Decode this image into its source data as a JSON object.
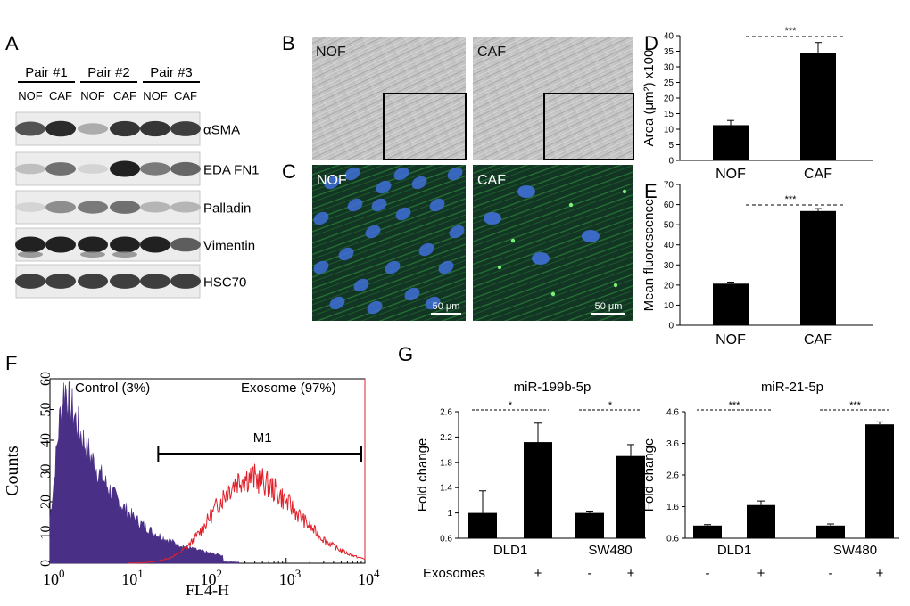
{
  "panels": {
    "A": {
      "letter": "A",
      "pairs": [
        "Pair #1",
        "Pair #2",
        "Pair #3"
      ],
      "lane_labels": [
        "NOF",
        "CAF",
        "NOF",
        "CAF",
        "NOF",
        "CAF"
      ],
      "blots": [
        {
          "label": "αSMA",
          "intensities": [
            0.75,
            0.95,
            0.3,
            0.9,
            0.9,
            0.85
          ]
        },
        {
          "label": "EDA FN1",
          "intensities": [
            0.2,
            0.6,
            0.1,
            1.0,
            0.55,
            0.65
          ]
        },
        {
          "label": "Palladin",
          "intensities": [
            0.1,
            0.45,
            0.55,
            0.6,
            0.25,
            0.25
          ]
        },
        {
          "label": "Vimentin",
          "intensities": [
            1.0,
            1.0,
            1.0,
            1.0,
            1.0,
            0.7
          ]
        },
        {
          "label": "HSC70",
          "intensities": [
            0.85,
            0.85,
            0.85,
            0.85,
            0.85,
            0.85
          ]
        }
      ]
    },
    "B": {
      "letter": "B",
      "left_label": "NOF",
      "right_label": "CAF"
    },
    "C": {
      "letter": "C",
      "left_label": "NOF",
      "right_label": "CAF",
      "scale_left": "50 μm",
      "scale_right": "50 μm"
    },
    "F": {
      "letter": "F"
    },
    "G": {
      "letter": "G",
      "exosomes_label": "Exosomes",
      "signs": [
        "-",
        "+",
        "-",
        "+"
      ]
    }
  },
  "chart_data": [
    {
      "id": "D",
      "type": "bar",
      "categories": [
        "NOF",
        "CAF"
      ],
      "values": [
        11.3,
        34.3
      ],
      "errors": [
        1.5,
        3.5
      ],
      "ylabel": "Area (μm²) x100",
      "ylim": [
        0,
        40
      ],
      "yticks": [
        "0",
        "5",
        "10",
        "15",
        "20",
        "25",
        "30",
        "35",
        "40"
      ],
      "significance": "***"
    },
    {
      "id": "E",
      "type": "bar",
      "categories": [
        "NOF",
        "CAF"
      ],
      "values": [
        20.7,
        56.8
      ],
      "errors": [
        0.8,
        1.2
      ],
      "ylabel": "Mean fluorescence",
      "ylim": [
        0,
        70
      ],
      "yticks": [
        "0",
        "10",
        "20",
        "30",
        "40",
        "50",
        "60",
        "70"
      ],
      "significance": "***"
    },
    {
      "id": "F",
      "type": "histogram",
      "ylabel": "Counts",
      "xlabel": "FL4-H",
      "xscale": "log",
      "xlim": [
        1,
        10000
      ],
      "ylim": [
        0,
        60
      ],
      "yticks": [
        "0",
        "10",
        "20",
        "30",
        "40",
        "50",
        "60"
      ],
      "xticks": [
        {
          "base": "10",
          "exp": "0"
        },
        {
          "base": "10",
          "exp": "1"
        },
        {
          "base": "10",
          "exp": "2"
        },
        {
          "base": "10",
          "exp": "3"
        },
        {
          "base": "10",
          "exp": "4"
        }
      ],
      "series": [
        {
          "name": "Control (3%)",
          "color": "#4a2f86",
          "filled": true,
          "peak_log10": 0.2,
          "peak_count": 57
        },
        {
          "name": "Exosome (97%)",
          "color": "#e0202a",
          "filled": false,
          "peak_log10": 2.5,
          "peak_count": 28
        }
      ],
      "gate": {
        "label": "M1",
        "range": [
          25,
          10000
        ]
      }
    },
    {
      "id": "G1",
      "type": "bar",
      "title": "miR-199b-5p",
      "ylabel": "Fold change",
      "groups": [
        "DLD1",
        "SW480"
      ],
      "values": [
        1.0,
        2.12,
        1.0,
        1.9
      ],
      "errors": [
        0.35,
        0.3,
        0.03,
        0.18
      ],
      "ylim": [
        0.6,
        2.6
      ],
      "yticks": [
        "0.6",
        "1",
        "1.4",
        "1.8",
        "2.2",
        "2.6"
      ],
      "significance": [
        "*",
        "*"
      ]
    },
    {
      "id": "G2",
      "type": "bar",
      "title": "miR-21-5p",
      "ylabel": "Fold change",
      "groups": [
        "DLD1",
        "SW480"
      ],
      "values": [
        1.0,
        1.65,
        1.0,
        4.2
      ],
      "errors": [
        0.03,
        0.13,
        0.05,
        0.08
      ],
      "ylim": [
        0.6,
        4.6
      ],
      "yticks": [
        "0.6",
        "1.6",
        "2.6",
        "3.6",
        "4.6"
      ],
      "significance": [
        "***",
        "***"
      ]
    }
  ]
}
